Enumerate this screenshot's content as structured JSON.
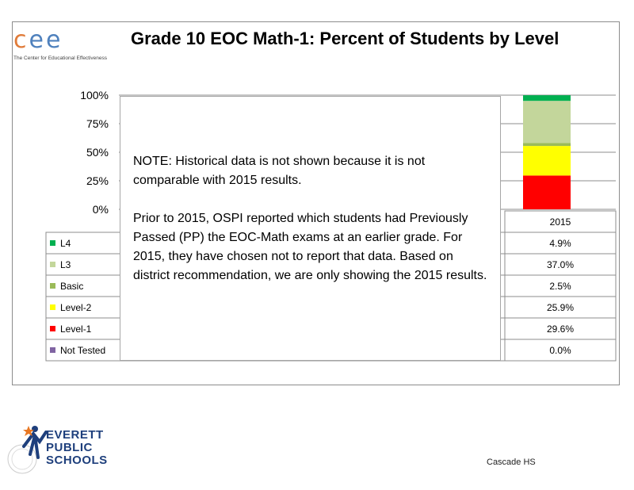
{
  "header": {
    "logo_text": "cee",
    "logo_subtitle": "The Center for Educational Effectiveness",
    "title": "Grade 10 EOC Math-1: Percent of Students by Level"
  },
  "note": {
    "paragraph_1": "NOTE: Historical data is not shown because it is not comparable with 2015 results.",
    "paragraph_2": "Prior to 2015, OSPI reported which students had Previously Passed (PP) the EOC-Math exams at an earlier grade. For 2015, they have chosen not to report that data. Based on district recommendation, we are only showing the 2015 results."
  },
  "footer": {
    "district_logo_lines": [
      "EVERETT",
      "PUBLIC",
      "SCHOOLS"
    ],
    "school": "Cascade HS"
  },
  "chart_data": {
    "type": "bar",
    "stacked": true,
    "percent_stacked": true,
    "categories": [
      "2015"
    ],
    "y_ticks": [
      "100%",
      "75%",
      "50%",
      "25%",
      "0%"
    ],
    "ylim": [
      0,
      100
    ],
    "grid": true,
    "legend": "table-left",
    "series": [
      {
        "name": "L4",
        "color": "#00b050",
        "values": [
          4.9
        ],
        "label": "4.9%"
      },
      {
        "name": "L3",
        "color": "#c3d69b",
        "values": [
          37.0
        ],
        "label": "37.0%"
      },
      {
        "name": "Basic",
        "color": "#9bbb59",
        "values": [
          2.5
        ],
        "label": "2.5%"
      },
      {
        "name": "Level-2",
        "color": "#ffff00",
        "values": [
          25.9
        ],
        "label": "25.9%"
      },
      {
        "name": "Level-1",
        "color": "#ff0000",
        "values": [
          29.6
        ],
        "label": "29.6%"
      },
      {
        "name": "Not Tested",
        "color": "#8064a2",
        "values": [
          0.0
        ],
        "label": "0.0%"
      }
    ]
  }
}
